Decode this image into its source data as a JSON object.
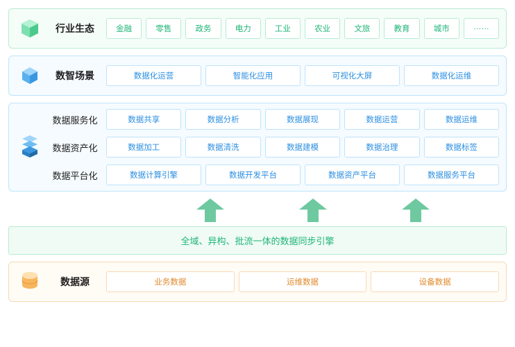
{
  "colors": {
    "green_border": "#b8ebd4",
    "green_bg": "#f5fdf9",
    "green_text": "#1fb578",
    "blue_border": "#bfe3fb",
    "blue_bg": "#f5fbff",
    "blue_text": "#2d8fe0",
    "orange_border": "#f8d9b6",
    "orange_bg": "#fffbf5",
    "orange_text": "#e08a2d",
    "arrow": "#6fc9a0",
    "label": "#222222",
    "page_bg": "#ffffff"
  },
  "typography": {
    "head_label_fontsize": 14,
    "row_label_fontsize": 13,
    "chip_fontsize": 11.5,
    "banner_fontsize": 13
  },
  "ecosystem": {
    "icon": "hexagon-cube-icon",
    "title": "行业生态",
    "items": [
      "金融",
      "零售",
      "政务",
      "电力",
      "工业",
      "农业",
      "文旅",
      "教育",
      "城市",
      "……"
    ]
  },
  "scenes": {
    "icon": "cube-y-icon",
    "title": "数智场景",
    "items": [
      "数据化运营",
      "智能化应用",
      "可视化大屏",
      "数据化运维"
    ]
  },
  "platform": {
    "icon": "layers-cube-icon",
    "rows": [
      {
        "label": "数据服务化",
        "items": [
          "数据共享",
          "数据分析",
          "数据展现",
          "数据运营",
          "数据运维"
        ]
      },
      {
        "label": "数据资产化",
        "items": [
          "数据加工",
          "数据清洗",
          "数据建模",
          "数据治理",
          "数据标签"
        ]
      },
      {
        "label": "数据平台化",
        "items": [
          "数据计算引擎",
          "数据开发平台",
          "数据资产平台",
          "数据服务平台"
        ]
      }
    ]
  },
  "sync_banner": "全域、异构、批流一体的数据同步引擎",
  "arrow_count": 3,
  "source": {
    "icon": "database-icon",
    "title": "数据源",
    "items": [
      "业务数据",
      "运维数据",
      "设备数据"
    ]
  }
}
